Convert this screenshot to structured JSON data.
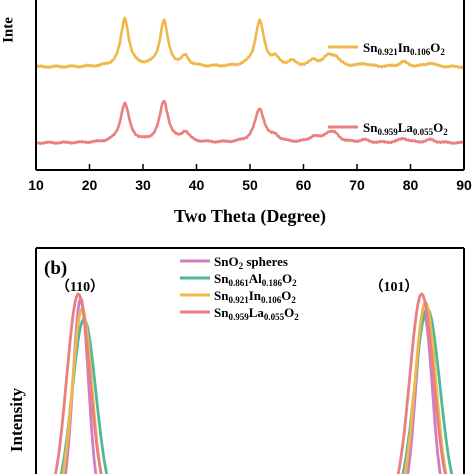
{
  "chart_data": [
    {
      "panel": "a",
      "type": "line",
      "ylabel": "Intensity",
      "ylabel_visible": "Inte",
      "xlabel": "Two Theta (Degree)",
      "xlim": [
        10,
        90
      ],
      "xticks": [
        "10",
        "20",
        "30",
        "40",
        "50",
        "60",
        "70",
        "80",
        "90"
      ],
      "grid": false,
      "legend_position": "right, next to each trace",
      "series": [
        {
          "name": "Sn0.921In0.106O2",
          "label": {
            "base": "Sn",
            "s1": "0.921",
            "m": "In",
            "s2": "0.106",
            "o": "O",
            "s3": "2"
          },
          "color": "#f0b84a",
          "baseline": 0,
          "peaks": [
            [
              26.6,
              1.0,
              0.9
            ],
            [
              33.9,
              0.95,
              0.9
            ],
            [
              37.9,
              0.2,
              0.8
            ],
            [
              51.8,
              0.95,
              1.0
            ],
            [
              54.7,
              0.15,
              0.8
            ],
            [
              57.8,
              0.1,
              0.8
            ],
            [
              61.9,
              0.12,
              0.9
            ],
            [
              64.7,
              0.2,
              1.2
            ],
            [
              66.0,
              0.14,
              0.9
            ],
            [
              71.3,
              0.06,
              1.0
            ],
            [
              78.7,
              0.1,
              1.0
            ],
            [
              83.7,
              0.08,
              1.0
            ]
          ]
        },
        {
          "name": "Sn0.959La0.055O2",
          "label": {
            "base": "Sn",
            "s1": "0.959",
            "m": "La",
            "s2": "0.055",
            "o": "O",
            "s3": "2"
          },
          "color": "#e97f7f",
          "baseline": 0,
          "peaks": [
            [
              26.6,
              0.9,
              1.0
            ],
            [
              33.9,
              0.95,
              1.0
            ],
            [
              37.9,
              0.22,
              0.9
            ],
            [
              51.8,
              0.78,
              1.1
            ],
            [
              54.7,
              0.12,
              0.9
            ],
            [
              61.9,
              0.12,
              1.0
            ],
            [
              64.7,
              0.2,
              1.3
            ],
            [
              66.0,
              0.12,
              1.0
            ],
            [
              71.3,
              0.06,
              1.0
            ],
            [
              78.7,
              0.1,
              1.1
            ],
            [
              83.7,
              0.07,
              1.1
            ]
          ]
        }
      ]
    },
    {
      "panel": "b",
      "type": "line",
      "panel_label": "(b)",
      "ylabel": "Intensity",
      "peak_labels": [
        "（110）",
        "（101）"
      ],
      "legend_position": "top-center",
      "series": [
        {
          "name": "SnO2 spheres",
          "label": {
            "base": "SnO",
            "s1": "2",
            "rest": " spheres"
          },
          "color": "#cf7fc0",
          "peaks": [
            [
              26.55,
              0.98,
              0.22
            ],
            [
              33.85,
              0.9,
              0.24
            ]
          ]
        },
        {
          "name": "Sn0.861Al0.186O2",
          "label": {
            "base": "Sn",
            "s1": "0.861",
            "m": "Al",
            "s2": "0.186",
            "o": "O",
            "s3": "2"
          },
          "color": "#4fb79a",
          "peaks": [
            [
              26.62,
              0.88,
              0.34
            ],
            [
              33.92,
              0.93,
              0.36
            ]
          ]
        },
        {
          "name": "Sn0.921In0.106O2",
          "label": {
            "base": "Sn",
            "s1": "0.921",
            "m": "In",
            "s2": "0.106",
            "o": "O",
            "s3": "2"
          },
          "color": "#f0b84a",
          "peaks": [
            [
              26.58,
              0.93,
              0.28
            ],
            [
              33.88,
              0.96,
              0.3
            ]
          ]
        },
        {
          "name": "Sn0.959La0.055O2",
          "label": {
            "base": "Sn",
            "s1": "0.959",
            "m": "La",
            "s2": "0.055",
            "o": "O",
            "s3": "2"
          },
          "color": "#e97f7f",
          "peaks": [
            [
              26.5,
              1.0,
              0.33
            ],
            [
              33.8,
              1.0,
              0.34
            ]
          ]
        }
      ]
    }
  ]
}
